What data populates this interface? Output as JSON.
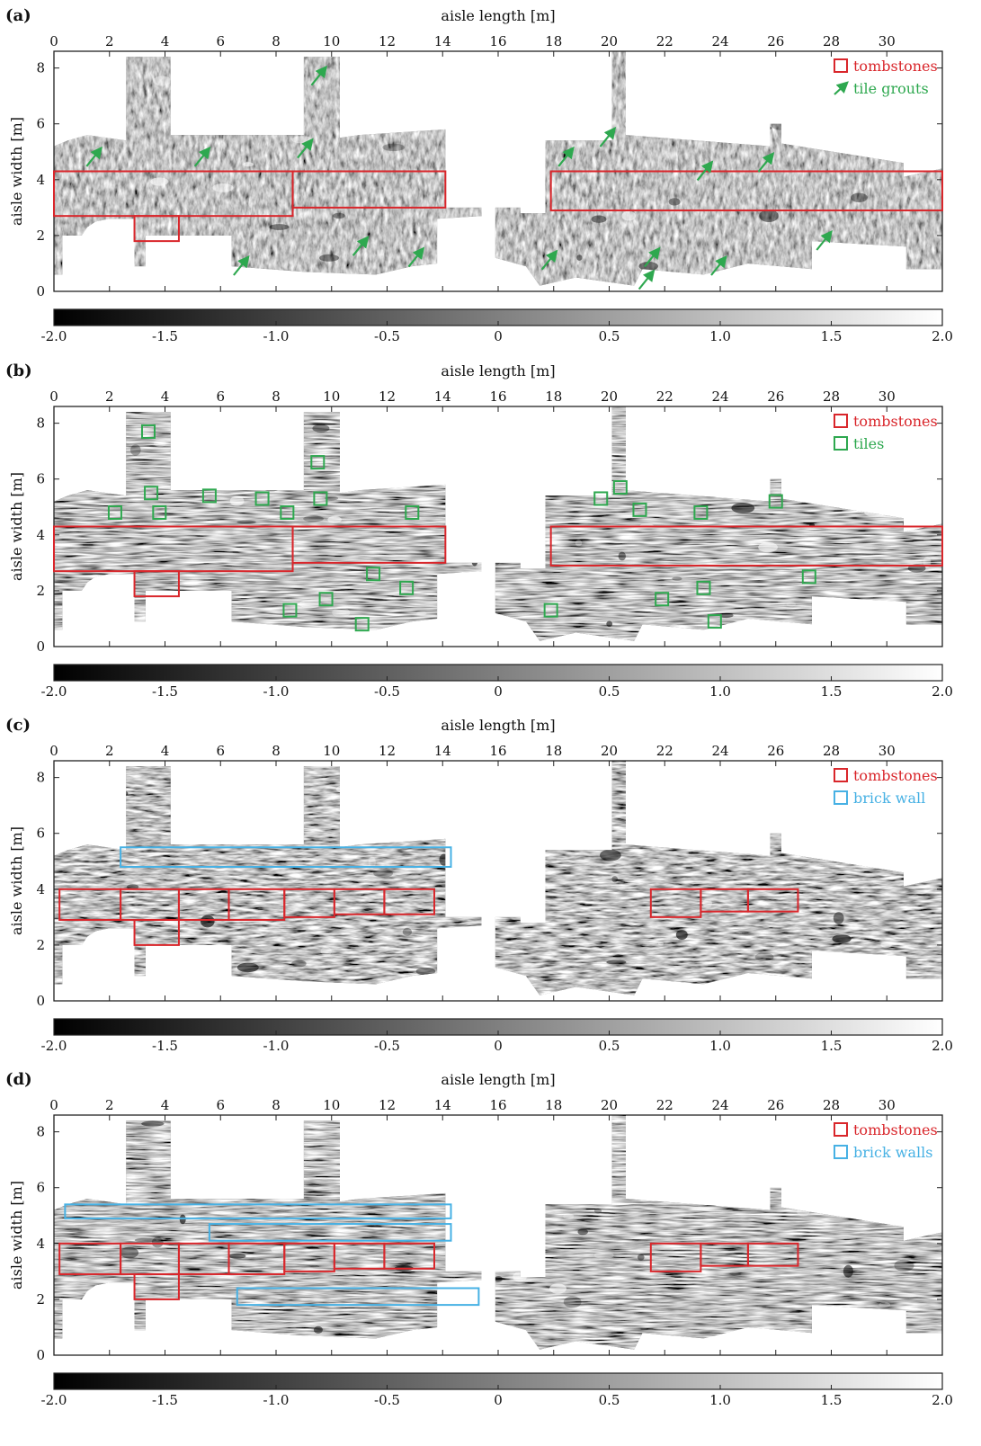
{
  "chart_data": [
    {
      "type": "heatmap",
      "panel_label": "(a)",
      "xlabel": "aisle length [m]",
      "ylabel": "aisle width [m]",
      "xlim": [
        0,
        32
      ],
      "ylim": [
        0,
        8.6
      ],
      "x_ticks": [
        "0",
        "2",
        "4",
        "6",
        "8",
        "10",
        "12",
        "14",
        "16",
        "18",
        "20",
        "22",
        "24",
        "26",
        "28",
        "30"
      ],
      "y_ticks": [
        "0",
        "2",
        "4",
        "6",
        "8"
      ],
      "legend": [
        {
          "marker": "square",
          "color": "#d9262b",
          "label": "tombstones"
        },
        {
          "marker": "arrow",
          "color": "#2ea84f",
          "label": "tile grouts"
        }
      ],
      "tombstones": [
        {
          "x0": 0,
          "x1": 8.6,
          "y0": 2.7,
          "y1": 4.3
        },
        {
          "x0": 8.6,
          "x1": 14.1,
          "y0": 3.0,
          "y1": 4.3
        },
        {
          "x0": 2.9,
          "x1": 4.5,
          "y0": 1.8,
          "y1": 2.7
        },
        {
          "x0": 17.9,
          "x1": 32,
          "y0": 2.9,
          "y1": 4.3
        }
      ],
      "tile_grouts": [
        {
          "x": 1.5,
          "y": 4.9
        },
        {
          "x": 5.4,
          "y": 4.9
        },
        {
          "x": 9.1,
          "y": 5.2
        },
        {
          "x": 9.6,
          "y": 7.8
        },
        {
          "x": 6.8,
          "y": 1.0
        },
        {
          "x": 11.1,
          "y": 1.7
        },
        {
          "x": 13.1,
          "y": 1.3
        },
        {
          "x": 17.9,
          "y": 1.2
        },
        {
          "x": 18.5,
          "y": 4.9
        },
        {
          "x": 20.0,
          "y": 5.6
        },
        {
          "x": 21.6,
          "y": 1.3
        },
        {
          "x": 21.4,
          "y": 0.5
        },
        {
          "x": 23.5,
          "y": 4.4
        },
        {
          "x": 25.7,
          "y": 4.7
        },
        {
          "x": 24.0,
          "y": 1.0
        },
        {
          "x": 27.8,
          "y": 1.9
        }
      ],
      "colorbar": {
        "min": -2.0,
        "max": 2.0,
        "tick_labels": [
          "-2.0",
          "-1.5",
          "-1.0",
          "-0.5",
          "0",
          "0.5",
          "1.0",
          "1.5",
          "2.0"
        ]
      }
    },
    {
      "type": "heatmap",
      "panel_label": "(b)",
      "xlabel": "aisle length [m]",
      "ylabel": "aisle width [m]",
      "xlim": [
        0,
        32
      ],
      "ylim": [
        0,
        8.6
      ],
      "x_ticks": [
        "0",
        "2",
        "4",
        "6",
        "8",
        "10",
        "12",
        "14",
        "16",
        "18",
        "20",
        "22",
        "24",
        "26",
        "28",
        "30"
      ],
      "y_ticks": [
        "0",
        "2",
        "4",
        "6",
        "8"
      ],
      "legend": [
        {
          "marker": "square",
          "color": "#d9262b",
          "label": "tombstones"
        },
        {
          "marker": "square",
          "color": "#2ea84f",
          "label": "tiles"
        }
      ],
      "tombstones": [
        {
          "x0": 0,
          "x1": 8.6,
          "y0": 2.7,
          "y1": 4.3
        },
        {
          "x0": 8.6,
          "x1": 14.1,
          "y0": 3.0,
          "y1": 4.3
        },
        {
          "x0": 2.9,
          "x1": 4.5,
          "y0": 1.8,
          "y1": 2.7
        },
        {
          "x0": 17.9,
          "x1": 32,
          "y0": 2.9,
          "y1": 4.3
        }
      ],
      "tiles": [
        {
          "x": 3.4,
          "y": 7.7
        },
        {
          "x": 3.5,
          "y": 5.5
        },
        {
          "x": 3.8,
          "y": 4.8
        },
        {
          "x": 2.2,
          "y": 4.8
        },
        {
          "x": 5.6,
          "y": 5.4
        },
        {
          "x": 7.5,
          "y": 5.3
        },
        {
          "x": 8.4,
          "y": 4.8
        },
        {
          "x": 9.5,
          "y": 6.6
        },
        {
          "x": 9.6,
          "y": 5.3
        },
        {
          "x": 12.9,
          "y": 4.8
        },
        {
          "x": 11.5,
          "y": 2.6
        },
        {
          "x": 12.7,
          "y": 2.1
        },
        {
          "x": 9.8,
          "y": 1.7
        },
        {
          "x": 8.5,
          "y": 1.3
        },
        {
          "x": 11.1,
          "y": 0.8
        },
        {
          "x": 17.9,
          "y": 1.3
        },
        {
          "x": 19.7,
          "y": 5.3
        },
        {
          "x": 20.4,
          "y": 5.7
        },
        {
          "x": 21.1,
          "y": 4.9
        },
        {
          "x": 23.3,
          "y": 4.8
        },
        {
          "x": 26.0,
          "y": 5.2
        },
        {
          "x": 27.2,
          "y": 2.5
        },
        {
          "x": 23.4,
          "y": 2.1
        },
        {
          "x": 21.9,
          "y": 1.7
        },
        {
          "x": 23.8,
          "y": 0.9
        }
      ],
      "colorbar": {
        "min": -2.0,
        "max": 2.0,
        "tick_labels": [
          "-2.0",
          "-1.5",
          "-1.0",
          "-0.5",
          "0",
          "0.5",
          "1.0",
          "1.5",
          "2.0"
        ]
      }
    },
    {
      "type": "heatmap",
      "panel_label": "(c)",
      "xlabel": "aisle length [m]",
      "ylabel": "aisle width [m]",
      "xlim": [
        0,
        32
      ],
      "ylim": [
        0,
        8.6
      ],
      "x_ticks": [
        "0",
        "2",
        "4",
        "6",
        "8",
        "10",
        "12",
        "14",
        "16",
        "18",
        "20",
        "22",
        "24",
        "26",
        "28",
        "30"
      ],
      "y_ticks": [
        "0",
        "2",
        "4",
        "6",
        "8"
      ],
      "legend": [
        {
          "marker": "square",
          "color": "#d9262b",
          "label": "tombstones"
        },
        {
          "marker": "square",
          "color": "#47b1e4",
          "label": "brick wall"
        }
      ],
      "tombstones": [
        {
          "x0": 0.2,
          "x1": 2.4,
          "y0": 2.9,
          "y1": 4.0
        },
        {
          "x0": 2.4,
          "x1": 4.5,
          "y0": 2.9,
          "y1": 4.0
        },
        {
          "x0": 4.5,
          "x1": 6.3,
          "y0": 2.9,
          "y1": 4.0
        },
        {
          "x0": 6.3,
          "x1": 8.3,
          "y0": 2.9,
          "y1": 4.0
        },
        {
          "x0": 8.3,
          "x1": 10.1,
          "y0": 3.0,
          "y1": 4.0
        },
        {
          "x0": 10.1,
          "x1": 11.9,
          "y0": 3.1,
          "y1": 4.0
        },
        {
          "x0": 11.9,
          "x1": 13.7,
          "y0": 3.1,
          "y1": 4.0
        },
        {
          "x0": 2.9,
          "x1": 4.5,
          "y0": 2.0,
          "y1": 2.9
        },
        {
          "x0": 21.5,
          "x1": 23.3,
          "y0": 3.0,
          "y1": 4.0
        },
        {
          "x0": 23.3,
          "x1": 25.0,
          "y0": 3.2,
          "y1": 4.0
        },
        {
          "x0": 25.0,
          "x1": 26.8,
          "y0": 3.2,
          "y1": 4.0
        }
      ],
      "brick_walls": [
        {
          "x0": 2.4,
          "x1": 14.3,
          "y0": 4.8,
          "y1": 5.5
        }
      ],
      "colorbar": {
        "min": -2.0,
        "max": 2.0,
        "tick_labels": [
          "-2.0",
          "-1.5",
          "-1.0",
          "-0.5",
          "0",
          "0.5",
          "1.0",
          "1.5",
          "2.0"
        ]
      }
    },
    {
      "type": "heatmap",
      "panel_label": "(d)",
      "xlabel": "aisle length [m]",
      "ylabel": "aisle width [m]",
      "xlim": [
        0,
        32
      ],
      "ylim": [
        0,
        8.6
      ],
      "x_ticks": [
        "0",
        "2",
        "4",
        "6",
        "8",
        "10",
        "12",
        "14",
        "16",
        "18",
        "20",
        "22",
        "24",
        "26",
        "28",
        "30"
      ],
      "y_ticks": [
        "0",
        "2",
        "4",
        "6",
        "8"
      ],
      "legend": [
        {
          "marker": "square",
          "color": "#d9262b",
          "label": "tombstones"
        },
        {
          "marker": "square",
          "color": "#47b1e4",
          "label": "brick walls"
        }
      ],
      "tombstones": [
        {
          "x0": 0.2,
          "x1": 2.4,
          "y0": 2.9,
          "y1": 4.0
        },
        {
          "x0": 2.4,
          "x1": 4.5,
          "y0": 2.9,
          "y1": 4.0
        },
        {
          "x0": 4.5,
          "x1": 6.3,
          "y0": 2.9,
          "y1": 4.0
        },
        {
          "x0": 6.3,
          "x1": 8.3,
          "y0": 2.9,
          "y1": 4.0
        },
        {
          "x0": 8.3,
          "x1": 10.1,
          "y0": 3.0,
          "y1": 4.0
        },
        {
          "x0": 10.1,
          "x1": 11.9,
          "y0": 3.1,
          "y1": 4.0
        },
        {
          "x0": 11.9,
          "x1": 13.7,
          "y0": 3.1,
          "y1": 4.0
        },
        {
          "x0": 2.9,
          "x1": 4.5,
          "y0": 2.0,
          "y1": 2.9
        },
        {
          "x0": 21.5,
          "x1": 23.3,
          "y0": 3.0,
          "y1": 4.0
        },
        {
          "x0": 23.3,
          "x1": 25.0,
          "y0": 3.2,
          "y1": 4.0
        },
        {
          "x0": 25.0,
          "x1": 26.8,
          "y0": 3.2,
          "y1": 4.0
        }
      ],
      "brick_walls": [
        {
          "x0": 0.4,
          "x1": 14.3,
          "y0": 4.9,
          "y1": 5.4
        },
        {
          "x0": 5.6,
          "x1": 14.3,
          "y0": 4.1,
          "y1": 4.7
        },
        {
          "x0": 6.6,
          "x1": 15.3,
          "y0": 1.8,
          "y1": 2.4
        }
      ],
      "colorbar": {
        "min": -2.0,
        "max": 2.0,
        "tick_labels": [
          "-2.0",
          "-1.5",
          "-1.0",
          "-0.5",
          "0",
          "0.5",
          "1.0",
          "1.5",
          "2.0"
        ]
      }
    }
  ]
}
